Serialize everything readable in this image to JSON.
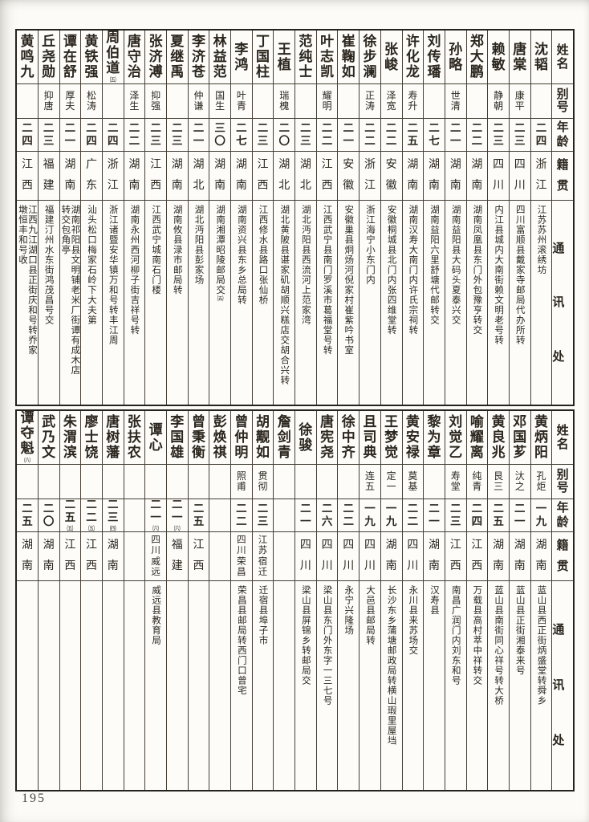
{
  "page": {
    "number": "195"
  },
  "headers": {
    "name": "姓名",
    "alias": "别号",
    "age": "年龄",
    "origin": "籍贯",
    "address": "通讯处"
  },
  "tables": [
    {
      "id": "top",
      "entries": [
        {
          "name": "沈韬",
          "alias": "",
          "age": "二四",
          "origin": "浙江",
          "address": "江苏苏州滚绣坊"
        },
        {
          "name": "唐棠",
          "alias": "康平",
          "age": "二三",
          "origin": "四川",
          "address": "四川富顺县戴家寺邮局代办所转"
        },
        {
          "name": "赖敏",
          "alias": "静朝",
          "age": "二三",
          "origin": "四川",
          "address": "内江县城内大南街赖文明老号转"
        },
        {
          "name": "郑大鹏",
          "alias": "",
          "age": "二二",
          "origin": "湖南",
          "address": "湖南凤凰县东门外包豫亨转交"
        },
        {
          "name": "孙略",
          "alias": "世清",
          "age": "二一",
          "origin": "湖南",
          "address": "湖南益阳县大码头夏泰兴交"
        },
        {
          "name": "刘传璠",
          "alias": "",
          "age": "二七",
          "origin": "湖南",
          "address": "湖南益阳六里舒塘代邮转交"
        },
        {
          "name": "许化龙",
          "alias": "寿升",
          "age": "二五",
          "origin": "湖南",
          "address": "湖南汉寿大南门内许氏宗祠转"
        },
        {
          "name": "张峻",
          "alias": "泽宽",
          "age": "二二",
          "origin": "安徽",
          "address": "安徽桐城县北门内张四维堂转"
        },
        {
          "name": "徐步澜",
          "alias": "正涛",
          "age": "二二",
          "origin": "浙江",
          "address": "浙江海宁小东门内"
        },
        {
          "name": "崔鞠如",
          "alias": "",
          "age": "二一",
          "origin": "安徽",
          "address": "安徽巢县炯炀河倪家村崔紫吟书室"
        },
        {
          "name": "叶志凯",
          "alias": "耀明",
          "age": "二二",
          "origin": "江西",
          "address": "江西武宁县南门罗溪市葛福堂号转"
        },
        {
          "name": "范纯士",
          "alias": "",
          "age": "二三",
          "origin": "湖北",
          "address": "湖北沔阳县西流河上范家湾"
        },
        {
          "name": "王植",
          "alias": "瑞槐",
          "age": "二〇",
          "origin": "湖北",
          "address": "湖北黄陂县谌家矶胡顺兴糕店交胡合兴转"
        },
        {
          "name": "丁国柱",
          "alias": "",
          "age": "二三",
          "origin": "江西",
          "address": "江西修水县路口张仙桥"
        },
        {
          "name": "李鸿",
          "alias": "叶青",
          "age": "二七",
          "origin": "湖南",
          "address": "湖南资兴县东乡总局转"
        },
        {
          "name": "林益范",
          "alias": "国生",
          "age": "三〇",
          "origin": "湖南",
          "address": "湖南湘潭昭陵邮局交",
          "addr_note": "㈤"
        },
        {
          "name": "李济苍",
          "alias": "仲谦",
          "age": "二一",
          "origin": "湖北",
          "address": "湖北沔阳县彭家场"
        },
        {
          "name": "夏继禹",
          "alias": "",
          "age": "二三",
          "origin": "湖南",
          "address": "湖南攸县渌市邮局转"
        },
        {
          "name": "张济溥",
          "alias": "抑强",
          "age": "二三",
          "origin": "江西",
          "address": "江西武宁城南石门楼"
        },
        {
          "name": "唐守治",
          "alias": "泽生",
          "age": "二二",
          "origin": "湖南",
          "address": "湖南永州西河柳子街吉祥号转"
        },
        {
          "name": "周伯道",
          "name_note": "㈤",
          "alias": "",
          "age": "二四",
          "origin": "浙江",
          "address": "浙江诸暨安华镇万和号转丰江周"
        },
        {
          "name": "黄铁强",
          "alias": "松涛",
          "age": "二四",
          "origin": "广东",
          "address": "汕头松口梅家石岭下大夫第"
        },
        {
          "name": "谭在舒",
          "alias": "厚夫",
          "age": "二一",
          "origin": "湖南",
          "address": "湖南祁阳县文明铺老米厂街谭有成木店\n转交包角亭"
        },
        {
          "name": "丘尧勋",
          "alias": "抑唐",
          "age": "二三",
          "origin": "福建",
          "address": "福建汀州水东街鸿茂昌号交"
        },
        {
          "name": "黄鸣九",
          "alias": "",
          "age": "二四",
          "origin": "江西",
          "address": "江西九江湖口县正街庆和号转乔家\n墩恒丰和号收"
        }
      ]
    },
    {
      "id": "bottom",
      "entries": [
        {
          "name": "黄炳阳",
          "alias": "孔炬",
          "age": "一九",
          "origin": "湖南",
          "address": "蓝山县西正街炳盛堂转舜乡"
        },
        {
          "name": "邓国芗",
          "alias": "汏之",
          "age": "二一",
          "origin": "湖南",
          "address": "蓝山县正街湘泰来号"
        },
        {
          "name": "黄良兆",
          "alias": "艮三",
          "age": "二五",
          "origin": "湖南",
          "address": "蓝山县南街同心祥号转大桥"
        },
        {
          "name": "喻耀离",
          "alias": "纯青",
          "age": "二四",
          "origin": "江西",
          "address": "万载县高村萃中祥转交"
        },
        {
          "name": "刘觉乙",
          "alias": "寿堂",
          "age": "二三",
          "origin": "江西",
          "address": "南昌广润门内刘东和号"
        },
        {
          "name": "黎为章",
          "alias": "",
          "age": "二一",
          "origin": "湖南",
          "address": "汉寿县"
        },
        {
          "name": "黄安禄",
          "alias": "莫基",
          "age": "二二",
          "origin": "四川",
          "address": "永川县来苏场交"
        },
        {
          "name": "王梦觉",
          "alias": "定一",
          "age": "一九",
          "origin": "湖南",
          "address": "长沙东乡蒲塘邮政局转横山瑕里屋垱"
        },
        {
          "name": "且司典",
          "alias": "连五",
          "age": "一九",
          "origin": "四川",
          "address": "大邑县邮局转"
        },
        {
          "name": "徐中齐",
          "alias": "",
          "age": "二二",
          "origin": "四川",
          "address": "永宁兴隆场"
        },
        {
          "name": "唐宪尧",
          "alias": "",
          "age": "二六",
          "origin": "四川",
          "address": "梁山县东门外东字一三七号"
        },
        {
          "name": "徐骏",
          "alias": "",
          "age": "二一",
          "origin": "四川",
          "address": "梁山县屏锦乡转邮局交"
        },
        {
          "name": "詹剑青",
          "alias": "",
          "age": "",
          "origin": "",
          "address": ""
        },
        {
          "name": "胡觏如",
          "alias": "贯彻",
          "age": "二三",
          "origin": "江苏宿迁",
          "address": "迁宿县埠子市"
        },
        {
          "name": "曾仲明",
          "alias": "照甫",
          "age": "二二",
          "origin": "四川荣昌",
          "address": "荣昌县邮局转西门口曾宅"
        },
        {
          "name": "彭焕祺",
          "alias": "",
          "age": "",
          "origin": "",
          "address": ""
        },
        {
          "name": "曾秉衡",
          "alias": "",
          "age": "二五",
          "origin": "江西",
          "address": ""
        },
        {
          "name": "李国雄",
          "alias": "",
          "age": "二一",
          "age_note": "㈥",
          "origin": "福建",
          "address": ""
        },
        {
          "name": "谭心",
          "alias": "",
          "age": "二一",
          "age_note": "㈥",
          "origin": "四川威远",
          "address": "威远县教育局"
        },
        {
          "name": "张扶农",
          "alias": "",
          "age": "",
          "origin": "",
          "address": ""
        },
        {
          "name": "唐树藩",
          "alias": "",
          "age": "二三",
          "age_note": "㈣",
          "origin": "湖南",
          "address": ""
        },
        {
          "name": "廖士饶",
          "alias": "",
          "age": "二二",
          "age_note": "㈤",
          "origin": "江西",
          "address": ""
        },
        {
          "name": "朱渭滨",
          "alias": "",
          "age": "二五",
          "age_note": "㈤",
          "origin": "江西",
          "address": ""
        },
        {
          "name": "武乃文",
          "alias": "",
          "age": "二〇",
          "origin": "湖南",
          "address": ""
        },
        {
          "name": "谭夺魁",
          "name_note": "㈧",
          "alias": "",
          "age": "二五",
          "origin": "湖南",
          "address": ""
        }
      ]
    }
  ]
}
